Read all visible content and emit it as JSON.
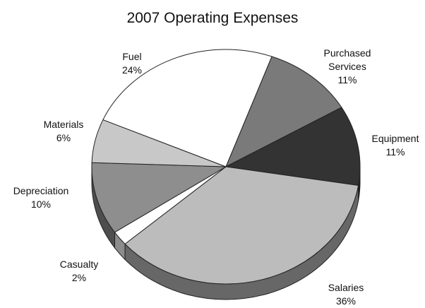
{
  "chart_data": {
    "type": "pie3d",
    "title": "2007 Operating Expenses",
    "categories": [
      "Purchased Services",
      "Equipment",
      "Salaries",
      "Casualty",
      "Depreciation",
      "Materials",
      "Fuel"
    ],
    "values": [
      11,
      11,
      36,
      2,
      10,
      6,
      24
    ],
    "value_labels": [
      "11%",
      "11%",
      "36%",
      "2%",
      "10%",
      "6%",
      "24%"
    ],
    "colors": [
      "#7a7a7a",
      "#333333",
      "#bcbcbc",
      "#ffffff",
      "#8e8e8e",
      "#c8c8c8",
      "#ffffff"
    ]
  }
}
